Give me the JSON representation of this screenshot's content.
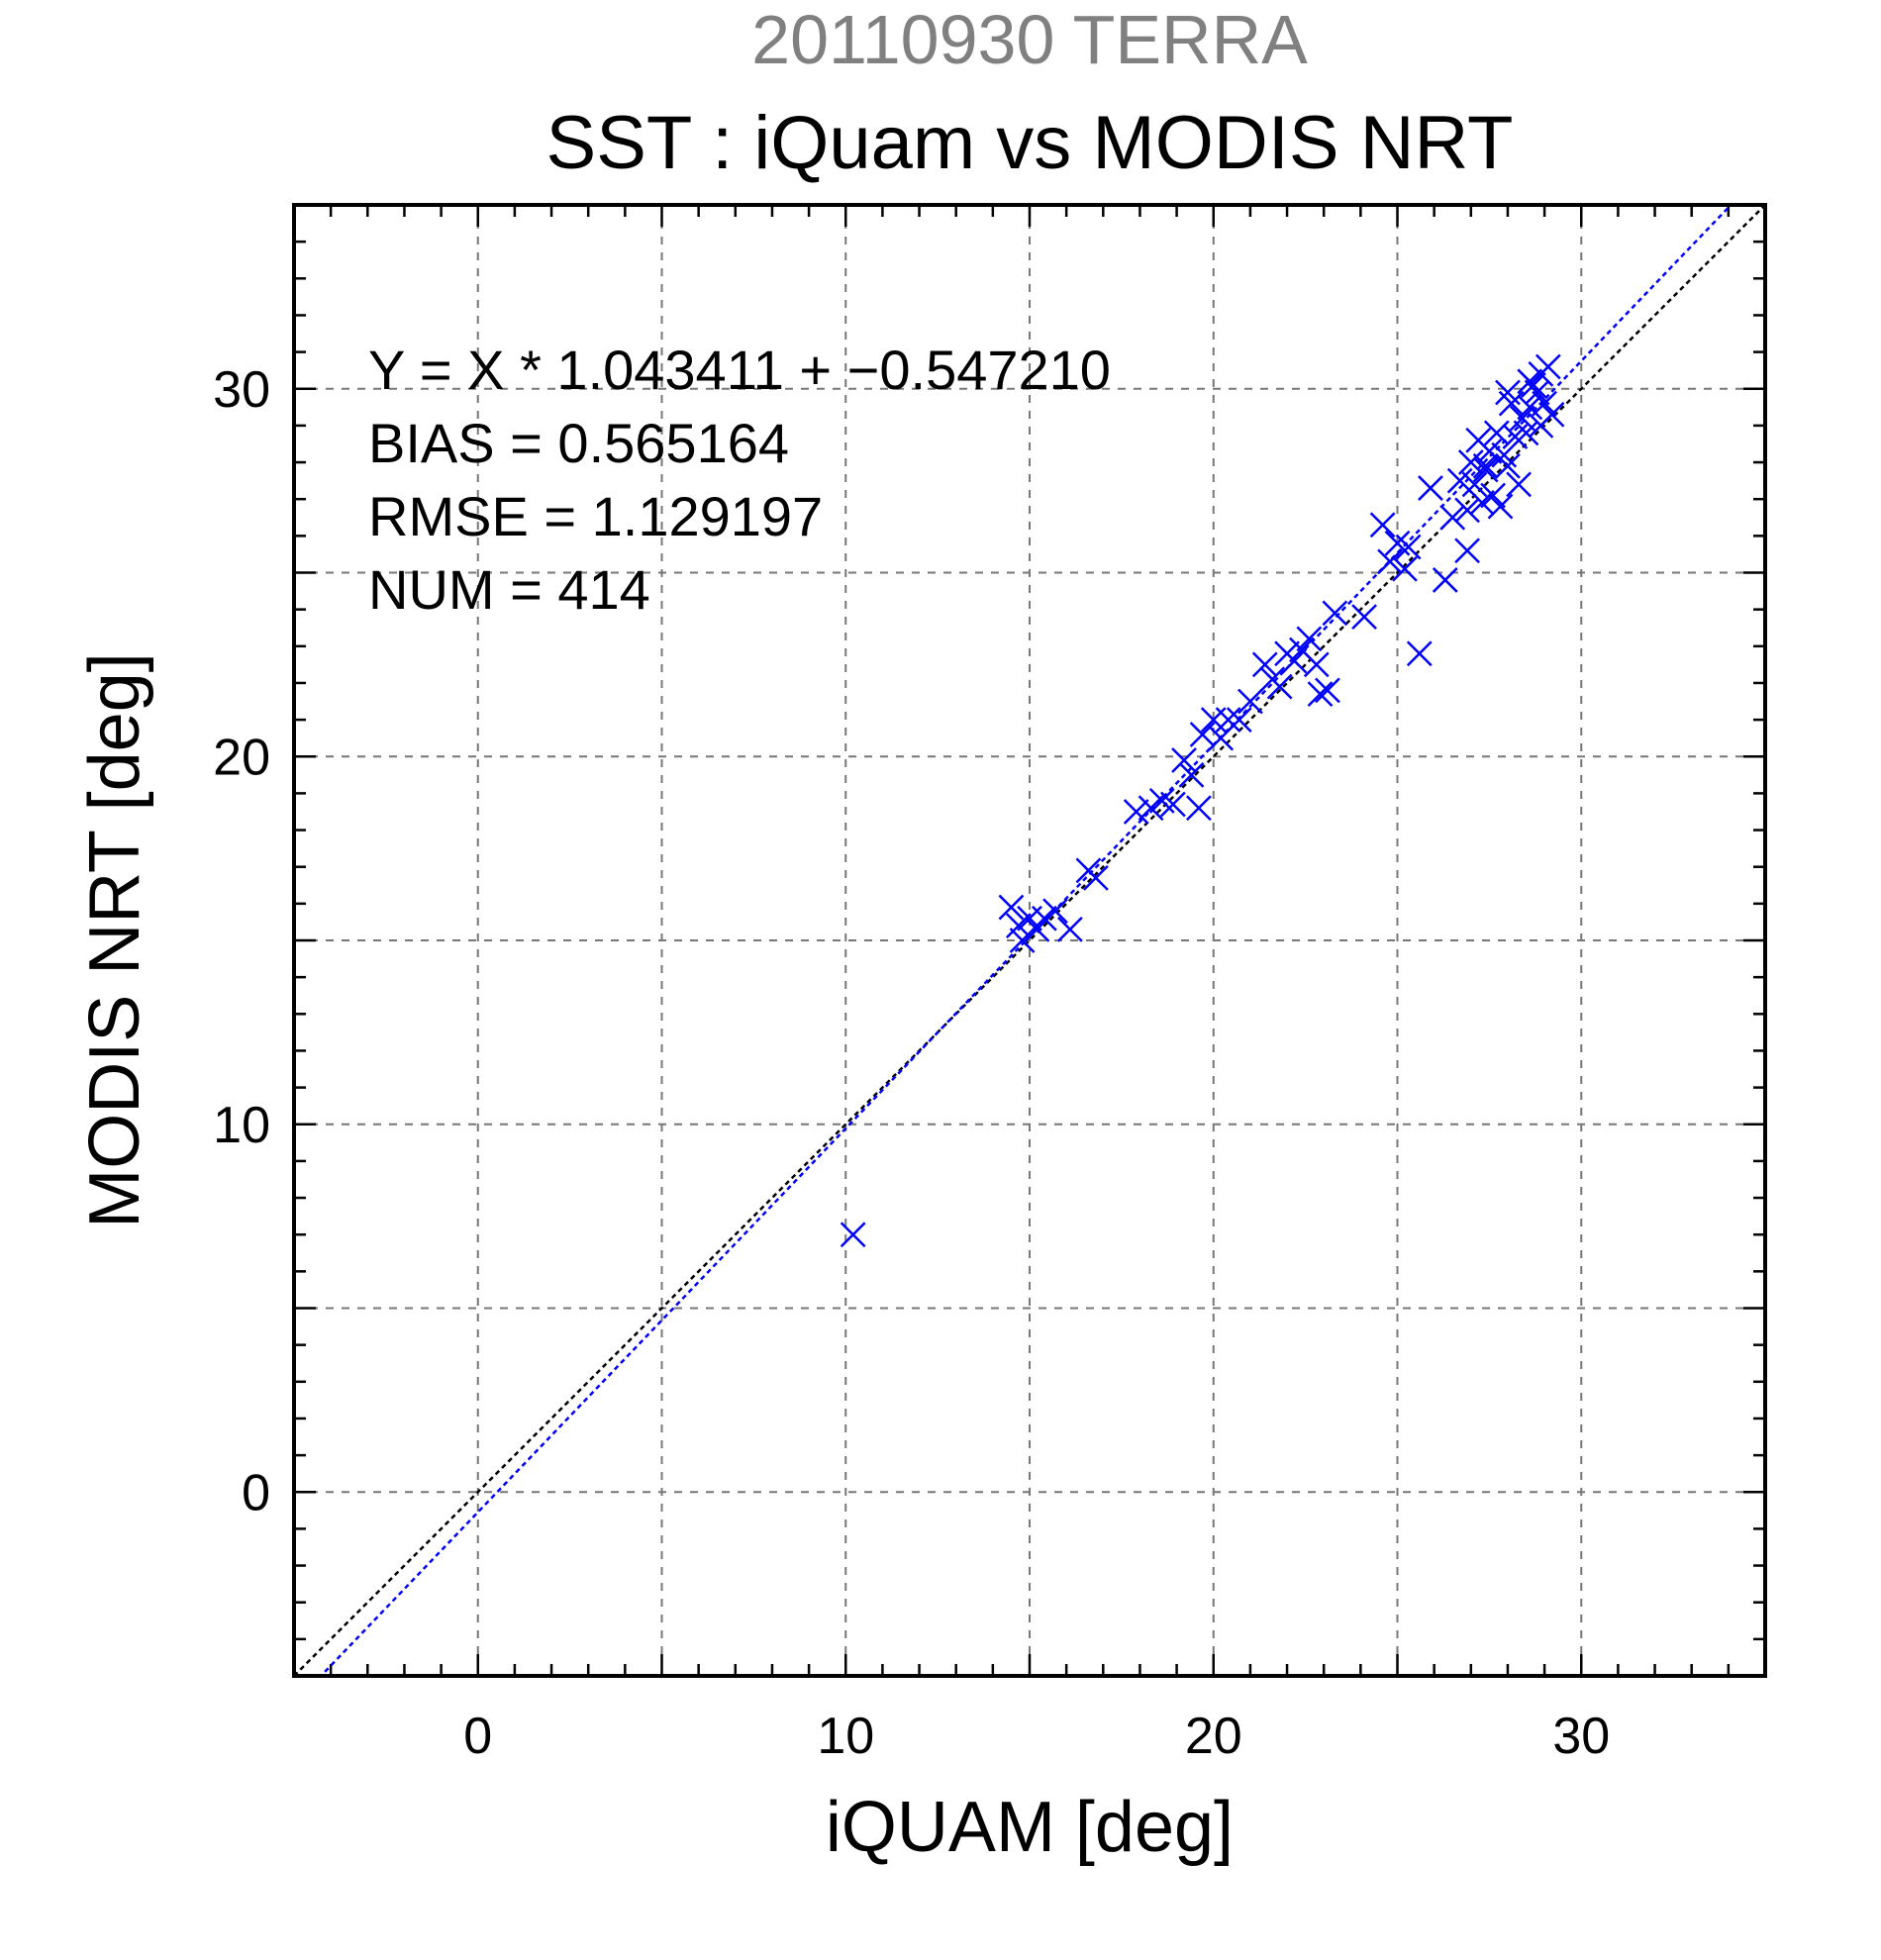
{
  "chart_data": {
    "type": "scatter",
    "subtitle": "20110930 TERRA",
    "title": "SST : iQuam vs MODIS NRT",
    "xlabel": "iQUAM [deg]",
    "ylabel": "MODIS NRT [deg]",
    "xlim": [
      -5,
      35
    ],
    "ylim": [
      -5,
      35
    ],
    "xticks": [
      0,
      10,
      20,
      30
    ],
    "yticks": [
      0,
      10,
      20,
      30
    ],
    "grid": true,
    "marker": "x",
    "colors": {
      "points": "#0000ff",
      "fit_line": "#0000ff",
      "identity_line": "#000000",
      "subtitle": "#808080"
    },
    "stats": [
      "Y = X * 1.043411 + −0.547210",
      "BIAS = 0.565164",
      "RMSE = 1.129197",
      "NUM = 414"
    ],
    "fit": {
      "slope": 1.043411,
      "intercept": -0.54721
    },
    "identity": {
      "slope": 1,
      "intercept": 0
    },
    "series": [
      {
        "x": [
          10.2,
          14.5,
          14.7,
          14.8,
          15.0,
          15.2,
          15.4,
          15.7,
          16.1,
          16.6,
          16.8,
          17.9,
          18.3,
          18.6,
          18.9,
          19.2,
          19.4,
          19.6,
          19.7,
          20.0,
          20.2,
          20.4,
          20.7,
          21.0,
          21.4,
          21.6,
          21.8,
          22.0,
          22.2,
          22.4,
          22.6,
          22.8,
          22.9,
          23.1,
          23.3,
          24.1,
          24.6,
          24.8,
          25.0,
          25.2,
          25.3,
          25.6,
          25.9,
          26.3,
          26.5,
          26.7,
          26.9,
          27.0,
          27.1,
          27.2,
          27.3,
          27.4,
          27.5,
          27.6,
          27.7,
          27.8,
          27.9,
          28.0,
          28.1,
          28.2,
          28.3,
          28.4,
          28.5,
          28.6,
          28.7,
          28.8,
          28.9,
          29.0,
          29.1,
          29.2,
          28.0,
          27.4,
          26.9,
          28.6,
          28.9
        ],
        "y": [
          7.0,
          15.9,
          15.4,
          15.0,
          15.6,
          15.3,
          15.6,
          15.8,
          15.3,
          16.9,
          16.7,
          18.5,
          18.6,
          18.8,
          18.7,
          19.9,
          19.5,
          18.6,
          20.6,
          21.0,
          20.5,
          21.0,
          21.0,
          21.5,
          22.5,
          22.1,
          21.9,
          22.8,
          22.6,
          22.9,
          23.2,
          22.5,
          21.7,
          21.8,
          23.9,
          23.8,
          26.3,
          25.3,
          25.8,
          25.1,
          25.7,
          22.8,
          27.3,
          24.8,
          26.5,
          27.5,
          26.7,
          28.0,
          27.4,
          28.6,
          26.9,
          27.8,
          28.3,
          27.1,
          28.8,
          26.8,
          28.2,
          27.9,
          29.6,
          28.7,
          27.4,
          29.2,
          28.8,
          29.5,
          30.1,
          29.9,
          30.4,
          29.6,
          30.6,
          29.3,
          29.9,
          27.9,
          25.6,
          30.2,
          29.0
        ]
      }
    ]
  }
}
